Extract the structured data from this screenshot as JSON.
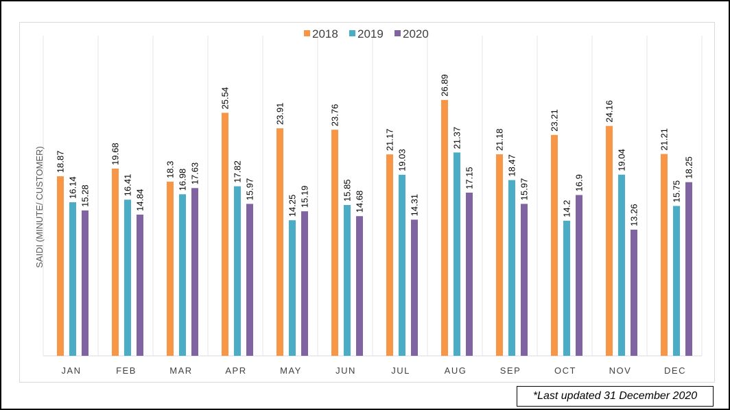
{
  "chart_data": {
    "type": "bar",
    "title": "",
    "xlabel": "",
    "ylabel": "SAIDI (MINUTE/ CUSTOMER)",
    "ylim": [
      0,
      32
    ],
    "grid": "vertical category separators",
    "legend_position": "top-center",
    "categories": [
      "JAN",
      "FEB",
      "MAR",
      "APR",
      "MAY",
      "JUN",
      "JUL",
      "AUG",
      "SEP",
      "OCT",
      "NOV",
      "DEC"
    ],
    "series": [
      {
        "name": "2018",
        "color": "#F79646",
        "values": [
          18.87,
          19.68,
          18.3,
          25.54,
          23.91,
          23.76,
          21.17,
          26.89,
          21.18,
          23.21,
          24.16,
          21.21
        ]
      },
      {
        "name": "2019",
        "color": "#4BACC6",
        "values": [
          16.14,
          16.41,
          16.98,
          17.82,
          14.25,
          15.85,
          19.03,
          21.37,
          18.47,
          14.2,
          19.04,
          15.75
        ]
      },
      {
        "name": "2020",
        "color": "#8064A2",
        "values": [
          15.28,
          14.84,
          17.63,
          15.97,
          15.19,
          14.68,
          14.31,
          17.15,
          15.97,
          16.9,
          13.26,
          18.25
        ]
      }
    ]
  },
  "note": "*Last updated 31 December 2020"
}
